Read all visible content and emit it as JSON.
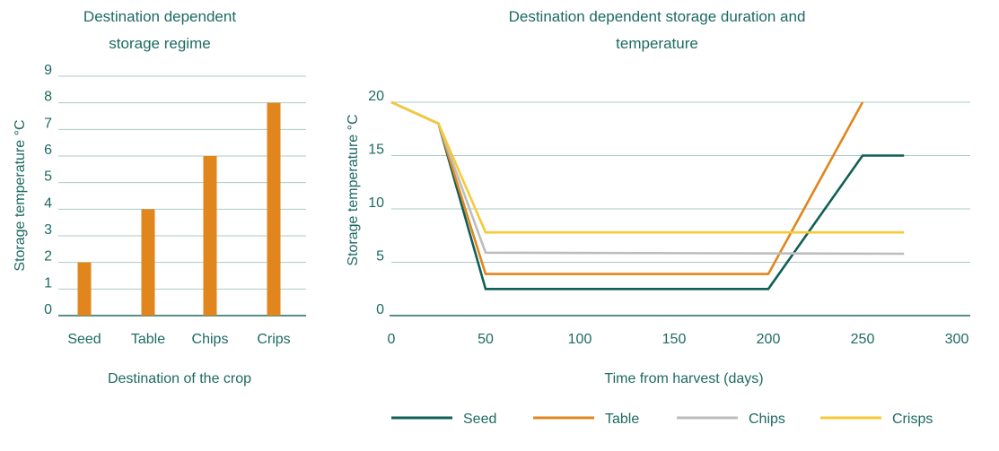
{
  "chart_data": [
    {
      "type": "bar",
      "title_lines": [
        "Destination dependent",
        "storage regime"
      ],
      "xlabel": "Destination of the crop",
      "ylabel": "Storage temperature °C",
      "categories": [
        "Seed",
        "Table",
        "Chips",
        "Crips"
      ],
      "values": [
        2,
        4,
        6,
        8
      ],
      "ylim": [
        0,
        9
      ],
      "yticks": [
        0,
        1,
        2,
        3,
        4,
        5,
        6,
        7,
        8,
        9
      ],
      "grid": true,
      "bar_color": "#e0861c"
    },
    {
      "type": "line",
      "title_lines": [
        "Destination dependent storage duration and",
        "temperature"
      ],
      "xlabel": "Time from harvest (days)",
      "ylabel": "Storage temperature °C",
      "xlim": [
        0,
        300
      ],
      "ylim": [
        0,
        20
      ],
      "xticks": [
        0,
        50,
        100,
        150,
        200,
        250,
        300
      ],
      "yticks": [
        0,
        5,
        10,
        15,
        20
      ],
      "grid": true,
      "legend_position": "bottom",
      "series": [
        {
          "name": "Seed",
          "color": "#0f5f56",
          "points": [
            [
              0,
              20
            ],
            [
              25,
              18
            ],
            [
              50,
              2.5
            ],
            [
              200,
              2.5
            ],
            [
              250,
              15
            ],
            [
              272,
              15
            ]
          ]
        },
        {
          "name": "Table",
          "color": "#e0861c",
          "points": [
            [
              0,
              20
            ],
            [
              25,
              18
            ],
            [
              50,
              3.9
            ],
            [
              200,
              3.9
            ],
            [
              250,
              20
            ]
          ]
        },
        {
          "name": "Chips",
          "color": "#bdbdbd",
          "points": [
            [
              0,
              20
            ],
            [
              25,
              18
            ],
            [
              50,
              5.9
            ],
            [
              272,
              5.8
            ]
          ]
        },
        {
          "name": "Crisps",
          "color": "#f7c935",
          "points": [
            [
              0,
              20
            ],
            [
              25,
              18
            ],
            [
              50,
              7.8
            ],
            [
              272,
              7.8
            ]
          ]
        }
      ]
    }
  ],
  "colors": {
    "text": "#1d6a62",
    "grid": "#a9cbc6",
    "axis": "#1d6a62"
  }
}
